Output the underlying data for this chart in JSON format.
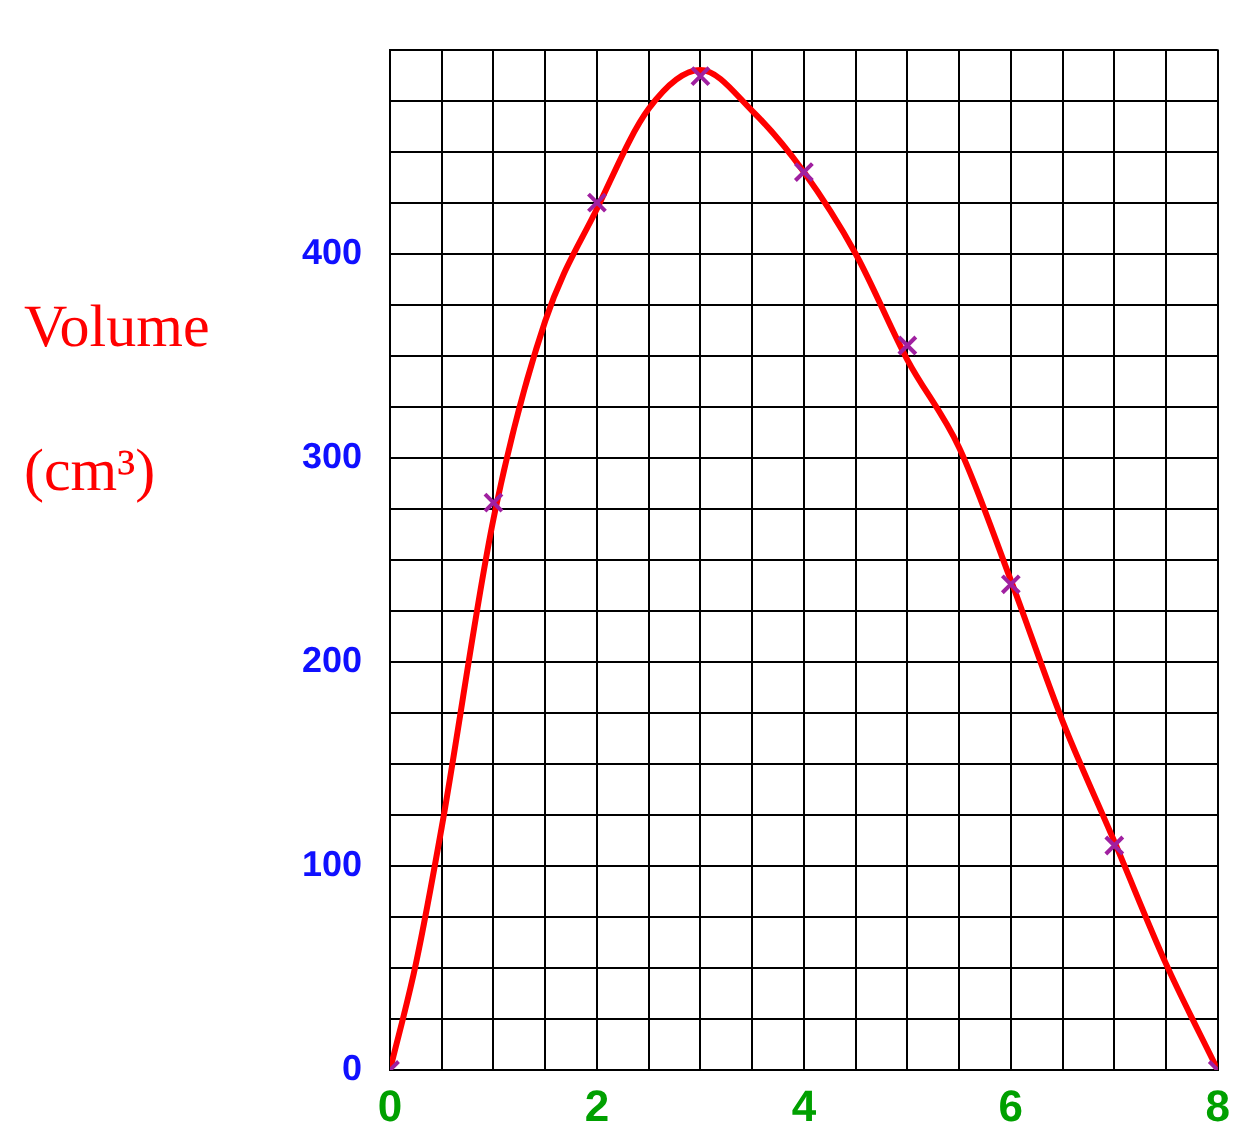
{
  "chart_data": {
    "type": "scatter",
    "ylabel": "Volume (cm³)",
    "xlim": [
      0,
      8
    ],
    "ylim": [
      0,
      500
    ],
    "xticks": [
      0,
      {
        "value": 0.5,
        "label": null
      },
      {
        "value": 1,
        "label": null
      },
      {
        "value": 1.5,
        "label": null
      },
      2,
      {
        "value": 2.5,
        "label": null
      },
      {
        "value": 3,
        "label": null
      },
      {
        "value": 3.5,
        "label": null
      },
      4,
      {
        "value": 4.5,
        "label": null
      },
      {
        "value": 5,
        "label": null
      },
      {
        "value": 5.5,
        "label": null
      },
      6,
      {
        "value": 6.5,
        "label": null
      },
      {
        "value": 7,
        "label": null
      },
      {
        "value": 7.5,
        "label": null
      },
      8
    ],
    "yticks": [
      0,
      {
        "value": 25,
        "label": null
      },
      {
        "value": 50,
        "label": null
      },
      {
        "value": 75,
        "label": null
      },
      100,
      {
        "value": 125,
        "label": null
      },
      {
        "value": 150,
        "label": null
      },
      {
        "value": 175,
        "label": null
      },
      200,
      {
        "value": 225,
        "label": null
      },
      {
        "value": 250,
        "label": null
      },
      {
        "value": 275,
        "label": null
      },
      300,
      {
        "value": 325,
        "label": null
      },
      {
        "value": 350,
        "label": null
      },
      {
        "value": 375,
        "label": null
      },
      400,
      {
        "value": 425,
        "label": null
      },
      {
        "value": 450,
        "label": null
      },
      {
        "value": 475,
        "label": null
      },
      {
        "value": 500,
        "label": null
      }
    ],
    "grid": true,
    "series": [
      {
        "type": "line",
        "marker": "none",
        "color": "#ff0000",
        "x": [
          0,
          0.25,
          0.5,
          1,
          1.5,
          2,
          2.5,
          3,
          3.5,
          4,
          4.5,
          5,
          5.5,
          6,
          6.5,
          7,
          7.5,
          8
        ],
        "values": [
          0,
          52,
          119,
          270,
          367,
          422,
          471,
          490,
          470,
          440,
          400,
          348,
          305,
          240,
          171,
          112,
          52,
          0
        ]
      },
      {
        "type": "scatter",
        "marker": "cross",
        "color": "#a020a0",
        "x": [
          0,
          1,
          2,
          3,
          4,
          5,
          6,
          7,
          8
        ],
        "values": [
          0,
          278,
          425,
          487,
          440,
          355,
          238,
          110,
          0
        ]
      }
    ]
  }
}
